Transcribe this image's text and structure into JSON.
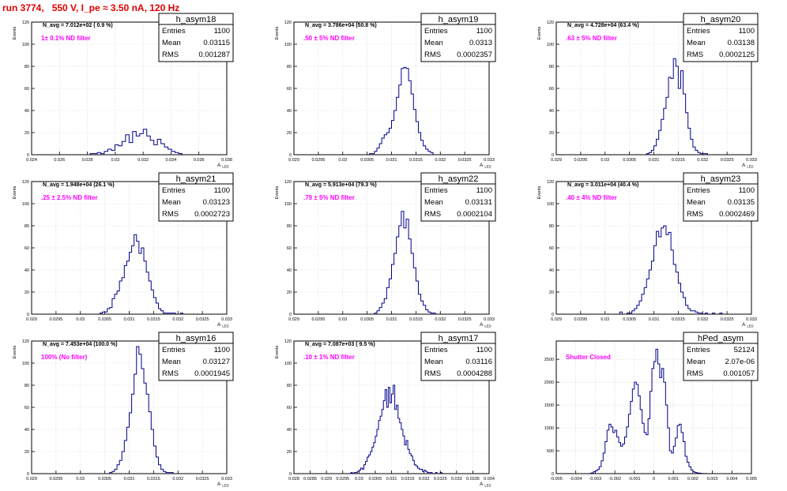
{
  "page": {
    "title": "run 3774,   550 V, I_pe ≈ 3.50 nA, 120 Hz"
  },
  "colors": {
    "histogram": "#00008b",
    "annotation": "#ff00ff",
    "title": "#e00000",
    "grid": "#c8c8c8"
  },
  "chart_data": [
    {
      "type": "histogram",
      "name": "h_asym18",
      "stats": {
        "entries_label": "Entries",
        "entries": "1100",
        "mean_label": "Mean",
        "mean": "0.03115",
        "rms_label": "RMS",
        "rms": "0.001287"
      },
      "navg": "N_avg = 7.012e+02 ( 0.9 %)",
      "note": "1± 0.1% ND filter",
      "ylabel": "Events",
      "xlabel": "A",
      "xlabel_sub": "LED",
      "xlim": [
        0.024,
        0.038
      ],
      "ylim": [
        0,
        120
      ],
      "xticks": [
        0.024,
        0.026,
        0.028,
        0.03,
        0.032,
        0.034,
        0.036,
        0.038
      ],
      "yticks": [
        0,
        20,
        40,
        60,
        80,
        100,
        120
      ],
      "grid": true,
      "bins": {
        "xmin": 0.0282,
        "xmax": 0.0348,
        "values": [
          1,
          1,
          2,
          1,
          3,
          5,
          4,
          9,
          8,
          12,
          18,
          11,
          21,
          17,
          19,
          23,
          17,
          13,
          9,
          14,
          10,
          7,
          5,
          3,
          2,
          1
        ]
      }
    },
    {
      "type": "histogram",
      "name": "h_asym19",
      "stats": {
        "entries_label": "Entries",
        "entries": "1100",
        "mean_label": "Mean",
        "mean": "0.0313",
        "rms_label": "RMS",
        "rms": "0.0002357"
      },
      "navg": "N_avg = 3.786e+04 (50.8 %)",
      "note": ".50 ± 5% ND filter",
      "ylabel": "Events",
      "xlabel": "A",
      "xlabel_sub": "LED",
      "xlim": [
        0.029,
        0.033
      ],
      "ylim": [
        0,
        120
      ],
      "xticks": [
        0.029,
        0.0295,
        0.03,
        0.0305,
        0.031,
        0.0315,
        0.032,
        0.0325,
        0.033
      ],
      "yticks": [
        0,
        20,
        40,
        60,
        80,
        100,
        120
      ],
      "grid": true,
      "bins": {
        "xmin": 0.03055,
        "xmax": 0.03185,
        "values": [
          1,
          1,
          3,
          6,
          10,
          15,
          18,
          20,
          24,
          31,
          40,
          52,
          63,
          78,
          79,
          78,
          67,
          55,
          41,
          30,
          20,
          13,
          8,
          5,
          3,
          2
        ]
      }
    },
    {
      "type": "histogram",
      "name": "h_asym20",
      "stats": {
        "entries_label": "Entries",
        "entries": "1100",
        "mean_label": "Mean",
        "mean": "0.03138",
        "rms_label": "RMS",
        "rms": "0.0002125"
      },
      "navg": "N_avg = 4.728e+04 (63.4 %)",
      "note": ".63 ± 5% ND filter",
      "ylabel": "Events",
      "xlabel": "A",
      "xlabel_sub": "LED",
      "xlim": [
        0.029,
        0.033
      ],
      "ylim": [
        0,
        120
      ],
      "xticks": [
        0.029,
        0.0295,
        0.03,
        0.0305,
        0.031,
        0.0315,
        0.032,
        0.0325,
        0.033
      ],
      "yticks": [
        0,
        20,
        40,
        60,
        80,
        100,
        120
      ],
      "grid": true,
      "bins": {
        "xmin": 0.03085,
        "xmax": 0.0321,
        "values": [
          1,
          2,
          4,
          8,
          14,
          22,
          32,
          42,
          52,
          70,
          69,
          87,
          80,
          60,
          76,
          55,
          38,
          24,
          14,
          7,
          4,
          2,
          1,
          1,
          1
        ]
      }
    },
    {
      "type": "histogram",
      "name": "h_asym21",
      "stats": {
        "entries_label": "Entries",
        "entries": "1100",
        "mean_label": "Mean",
        "mean": "0.03123",
        "rms_label": "RMS",
        "rms": "0.0002723"
      },
      "navg": "N_avg = 1.948e+04 (26.1 %)",
      "note": ".25 ± 2.5% ND filter",
      "ylabel": "Events",
      "xlabel": "A",
      "xlabel_sub": "LED",
      "xlim": [
        0.029,
        0.033
      ],
      "ylim": [
        0,
        120
      ],
      "xticks": [
        0.029,
        0.0295,
        0.03,
        0.0305,
        0.031,
        0.0315,
        0.032,
        0.0325,
        0.033
      ],
      "yticks": [
        0,
        20,
        40,
        60,
        80,
        100,
        120
      ],
      "grid": true,
      "bins": {
        "xmin": 0.0304,
        "xmax": 0.0321,
        "values": [
          1,
          2,
          2,
          5,
          6,
          14,
          18,
          21,
          30,
          33,
          44,
          48,
          56,
          62,
          72,
          66,
          55,
          60,
          48,
          38,
          30,
          22,
          15,
          10,
          5,
          3,
          1,
          1,
          1,
          1,
          1,
          0,
          0,
          1
        ]
      }
    },
    {
      "type": "histogram",
      "name": "h_asym22",
      "stats": {
        "entries_label": "Entries",
        "entries": "1100",
        "mean_label": "Mean",
        "mean": "0.03131",
        "rms_label": "RMS",
        "rms": "0.0002104"
      },
      "navg": "N_avg = 5.913e+04 (79.3 %)",
      "note": ".79 ± 5% ND filter",
      "ylabel": "Events",
      "xlabel": "A",
      "xlabel_sub": "LED",
      "xlim": [
        0.029,
        0.033
      ],
      "ylim": [
        0,
        120
      ],
      "xticks": [
        0.029,
        0.0295,
        0.03,
        0.0305,
        0.031,
        0.0315,
        0.032,
        0.0325,
        0.033
      ],
      "yticks": [
        0,
        20,
        40,
        60,
        80,
        100,
        120
      ],
      "grid": true,
      "bins": {
        "xmin": 0.03065,
        "xmax": 0.0319,
        "values": [
          1,
          3,
          6,
          10,
          14,
          24,
          32,
          45,
          55,
          70,
          80,
          93,
          78,
          86,
          68,
          55,
          42,
          30,
          18,
          12,
          8,
          4,
          2,
          1,
          1
        ]
      }
    },
    {
      "type": "histogram",
      "name": "h_asym23",
      "stats": {
        "entries_label": "Entries",
        "entries": "1100",
        "mean_label": "Mean",
        "mean": "0.03135",
        "rms_label": "RMS",
        "rms": "0.0002469"
      },
      "navg": "N_avg = 3.011e+04 (40.4 %)",
      "note": ".40 ± 4% ND filter",
      "ylabel": "Events",
      "xlabel": "A",
      "xlabel_sub": "LED",
      "xlim": [
        0.029,
        0.033
      ],
      "ylim": [
        0,
        120
      ],
      "xticks": [
        0.029,
        0.0295,
        0.03,
        0.0305,
        0.031,
        0.0315,
        0.032,
        0.0325,
        0.033
      ],
      "yticks": [
        0,
        20,
        40,
        60,
        80,
        100,
        120
      ],
      "grid": true,
      "bins": {
        "xmin": 0.0303,
        "xmax": 0.0324,
        "values": [
          2,
          0,
          0,
          1,
          1,
          3,
          5,
          8,
          12,
          18,
          24,
          32,
          40,
          48,
          62,
          75,
          70,
          78,
          80,
          72,
          74,
          58,
          45,
          38,
          28,
          20,
          15,
          8,
          5,
          3,
          3,
          2,
          1,
          1,
          0,
          1,
          0,
          0,
          1,
          0,
          0,
          1
        ]
      }
    },
    {
      "type": "histogram",
      "name": "h_asym16",
      "stats": {
        "entries_label": "Entries",
        "entries": "1100",
        "mean_label": "Mean",
        "mean": "0.03127",
        "rms_label": "RMS",
        "rms": "0.0001945"
      },
      "navg": "N_avg = 7.453e+04 (100.0 %)",
      "note": "100% (No filter)",
      "ylabel": "Events",
      "xlabel": "A",
      "xlabel_sub": "LED",
      "xlim": [
        0.029,
        0.033
      ],
      "ylim": [
        0,
        120
      ],
      "xticks": [
        0.029,
        0.0295,
        0.03,
        0.0305,
        0.031,
        0.0315,
        0.032,
        0.0325,
        0.033
      ],
      "yticks": [
        0,
        20,
        40,
        60,
        80,
        100,
        120
      ],
      "grid": true,
      "bins": {
        "xmin": 0.0306,
        "xmax": 0.0319,
        "values": [
          1,
          2,
          4,
          8,
          12,
          20,
          30,
          42,
          55,
          72,
          90,
          115,
          108,
          95,
          82,
          72,
          56,
          40,
          25,
          15,
          8,
          4,
          2,
          1,
          1,
          1
        ]
      }
    },
    {
      "type": "histogram",
      "name": "h_asym17",
      "stats": {
        "entries_label": "Entries",
        "entries": "1100",
        "mean_label": "Mean",
        "mean": "0.03116",
        "rms_label": "RMS",
        "rms": "0.0004288"
      },
      "navg": "N_avg = 7.087e+03 ( 9.5 %)",
      "note": ".10 ± 1% ND filter",
      "ylabel": "Events",
      "xlabel": "A",
      "xlabel_sub": "LED",
      "xlim": [
        0.028,
        0.034
      ],
      "ylim": [
        0,
        120
      ],
      "xticks": [
        0.028,
        0.0285,
        0.029,
        0.0295,
        0.03,
        0.0305,
        0.031,
        0.0315,
        0.032,
        0.0325,
        0.033,
        0.0335,
        0.034
      ],
      "yticks": [
        0,
        20,
        40,
        60,
        80,
        100,
        120
      ],
      "grid": true,
      "bins": {
        "xmin": 0.02975,
        "xmax": 0.03265,
        "values": [
          1,
          0,
          1,
          1,
          2,
          3,
          5,
          4,
          8,
          11,
          15,
          17,
          20,
          24,
          28,
          34,
          40,
          48,
          52,
          58,
          66,
          76,
          60,
          78,
          64,
          72,
          80,
          58,
          62,
          50,
          46,
          40,
          34,
          26,
          30,
          22,
          18,
          16,
          12,
          8,
          7,
          5,
          4,
          4,
          2,
          3,
          2,
          1,
          1,
          1,
          0,
          0,
          1,
          0,
          0,
          1,
          0,
          0
        ]
      }
    },
    {
      "type": "histogram",
      "name": "hPed_asym",
      "stats": {
        "entries_label": "Entries",
        "entries": "52124",
        "mean_label": "Mean",
        "mean": "2.07e-06",
        "rms_label": "RMS",
        "rms": "0.001057"
      },
      "navg": "",
      "note": "Shutter Closed",
      "ylabel": "",
      "xlabel": "",
      "xlabel_sub": "",
      "xlim": [
        -0.005,
        0.005
      ],
      "ylim": [
        0,
        2900
      ],
      "xticks": [
        -0.005,
        -0.004,
        -0.003,
        -0.002,
        -0.001,
        0,
        0.001,
        0.002,
        0.003,
        0.004,
        0.005
      ],
      "yticks": [
        0,
        500,
        1000,
        1500,
        2000,
        2500
      ],
      "grid": true,
      "bins": {
        "xmin": -0.0034,
        "xmax": 0.003,
        "values": [
          0,
          5,
          15,
          40,
          60,
          90,
          150,
          280,
          450,
          700,
          950,
          1080,
          1020,
          900,
          950,
          800,
          680,
          600,
          650,
          800,
          1020,
          1300,
          1580,
          1850,
          2000,
          1950,
          1700,
          1400,
          1100,
          900,
          850,
          1200,
          1800,
          2300,
          2450,
          2720,
          2400,
          2100,
          2300,
          2000,
          1500,
          1000,
          500,
          450,
          600,
          780,
          1050,
          1080,
          900,
          700,
          380,
          250,
          150,
          80,
          40,
          25,
          15,
          10,
          5,
          3,
          2,
          1,
          0,
          0
        ]
      }
    }
  ]
}
